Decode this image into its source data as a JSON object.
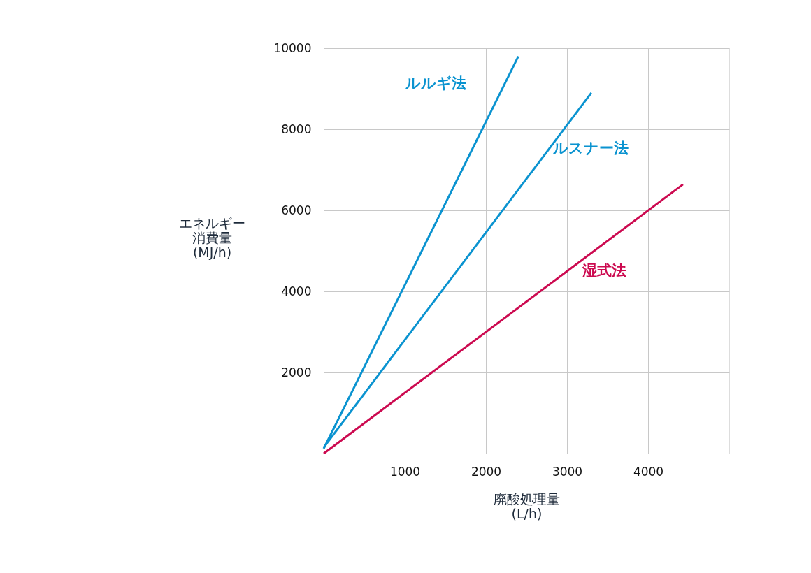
{
  "chart_data": {
    "type": "line",
    "xlabel": "廃酸処理量\n(L/h)",
    "ylabel": "エネルギー消費量\n(MJ/h)",
    "xlim": [
      0,
      5000
    ],
    "ylim": [
      0,
      10000
    ],
    "xticks": [
      1000,
      2000,
      3000,
      4000
    ],
    "yticks": [
      2000,
      4000,
      6000,
      8000,
      10000
    ],
    "grid": true,
    "marker": "none",
    "line_style": "solid",
    "series": [
      {
        "name": "ルルギ法",
        "color": "#0a93d0",
        "x": [
          0,
          2400
        ],
        "values": [
          120,
          9800
        ]
      },
      {
        "name": "ルスナー法",
        "color": "#0a93d0",
        "x": [
          0,
          3300
        ],
        "values": [
          150,
          8900
        ]
      },
      {
        "name": "湿式法",
        "color": "#cc0a50",
        "x": [
          0,
          4430
        ],
        "values": [
          0,
          6640
        ]
      }
    ]
  }
}
